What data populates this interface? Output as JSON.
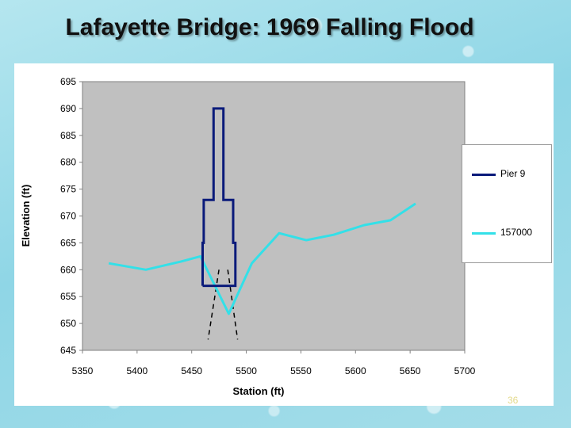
{
  "slide": {
    "title": "Lafayette Bridge: 1969 Falling Flood",
    "page_number": "36"
  },
  "colors": {
    "plot_background": "#c0c0c0",
    "pier": "#0a1a7a",
    "flood": "#33e0e8",
    "scour": "#000000"
  },
  "chart_data": {
    "type": "line",
    "title": "Lafayette Bridge: 1969 Falling Flood",
    "xlabel": "Station (ft)",
    "ylabel": "Elevation (ft)",
    "xlim": [
      5350,
      5700
    ],
    "ylim": [
      645,
      695
    ],
    "x_ticks": [
      5350,
      5400,
      5450,
      5500,
      5550,
      5600,
      5650,
      5700
    ],
    "y_ticks": [
      645,
      650,
      655,
      660,
      665,
      670,
      675,
      680,
      685,
      690,
      695
    ],
    "grid": false,
    "legend_position": "right",
    "series": [
      {
        "name": "Pier 9",
        "points": [
          [
            5460,
            657
          ],
          [
            5460,
            665
          ],
          [
            5461,
            665
          ],
          [
            5461,
            673
          ],
          [
            5470,
            673
          ],
          [
            5470,
            690
          ],
          [
            5479,
            690
          ],
          [
            5479,
            673
          ],
          [
            5488,
            673
          ],
          [
            5488,
            665
          ],
          [
            5490,
            665
          ],
          [
            5490,
            657
          ],
          [
            5460,
            657
          ]
        ]
      },
      {
        "name": "157000",
        "points": [
          [
            5374,
            661.2
          ],
          [
            5408,
            660
          ],
          [
            5440,
            661.5
          ],
          [
            5458,
            662.5
          ],
          [
            5484,
            651.8
          ],
          [
            5505,
            661.2
          ],
          [
            5530,
            666.8
          ],
          [
            5555,
            665.5
          ],
          [
            5580,
            666.5
          ],
          [
            5608,
            668.3
          ],
          [
            5632,
            669.2
          ],
          [
            5655,
            672.3
          ]
        ]
      },
      {
        "points": [
          [
            5475,
            660
          ],
          [
            5465,
            647
          ]
        ]
      },
      {
        "points": [
          [
            5483,
            660
          ],
          [
            5492,
            647
          ]
        ]
      }
    ]
  }
}
